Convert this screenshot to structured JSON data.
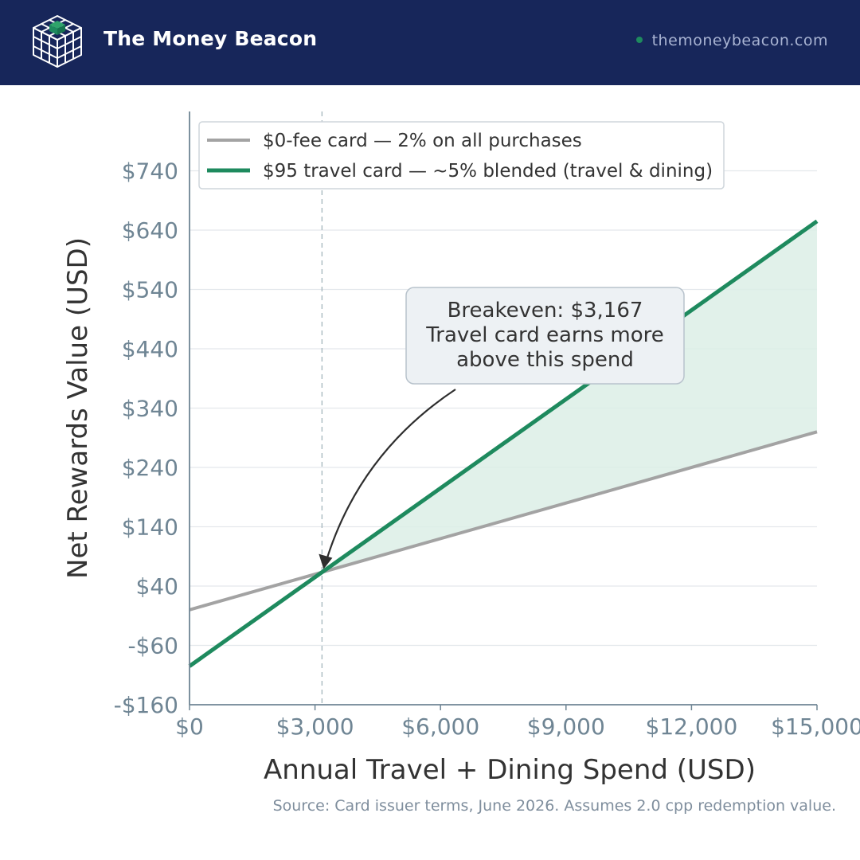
{
  "header": {
    "brand": "The Money Beacon",
    "site": "themoneybeacon.com",
    "logo_icon": "cube-grid-logo-icon"
  },
  "colors": {
    "header_bg": "#17265a",
    "fee_free_line": "#a3a3a3",
    "travel_line": "#1e8a5e",
    "advantage_fill": "#dcefe6",
    "axis_text": "#6f8594",
    "callout_bg": "#edf1f4"
  },
  "chart_data": {
    "type": "line",
    "xlabel": "Annual Travel + Dining Spend (USD)",
    "ylabel": "Net Rewards Value (USD)",
    "xlim": [
      0,
      15000
    ],
    "ylim": [
      -160,
      840
    ],
    "x_ticks": [
      0,
      3000,
      6000,
      9000,
      12000,
      15000
    ],
    "x_tick_labels": [
      "$0",
      "$3,000",
      "$6,000",
      "$9,000",
      "$12,000",
      "$15,000"
    ],
    "y_ticks": [
      -160,
      -60,
      40,
      140,
      240,
      340,
      440,
      540,
      640,
      740
    ],
    "y_tick_labels": [
      "-$160",
      "-$60",
      "$40",
      "$140",
      "$240",
      "$340",
      "$440",
      "$540",
      "$640",
      "$740"
    ],
    "grid": "horizontal",
    "legend_position": "top-left",
    "series": [
      {
        "name": "$0-fee card — 2% on all purchases",
        "x": [
          0,
          15000
        ],
        "values": [
          0,
          300
        ],
        "color": "#a3a3a3"
      },
      {
        "name": "$95 travel card — ~5% blended (travel & dining)",
        "x": [
          0,
          15000
        ],
        "values": [
          -95,
          655
        ],
        "color": "#1e8a5e"
      }
    ],
    "shaded_region": {
      "from_x": 3167,
      "to_x": 15000,
      "description": "travel card advantage"
    },
    "breakeven": {
      "x": 3167,
      "y": 63.3
    },
    "annotation": {
      "lines": [
        "Breakeven: $3,167",
        "Travel card earns more",
        "above this spend"
      ]
    }
  },
  "source": "Source: Card issuer terms, June 2026. Assumes 2.0 cpp redemption value."
}
